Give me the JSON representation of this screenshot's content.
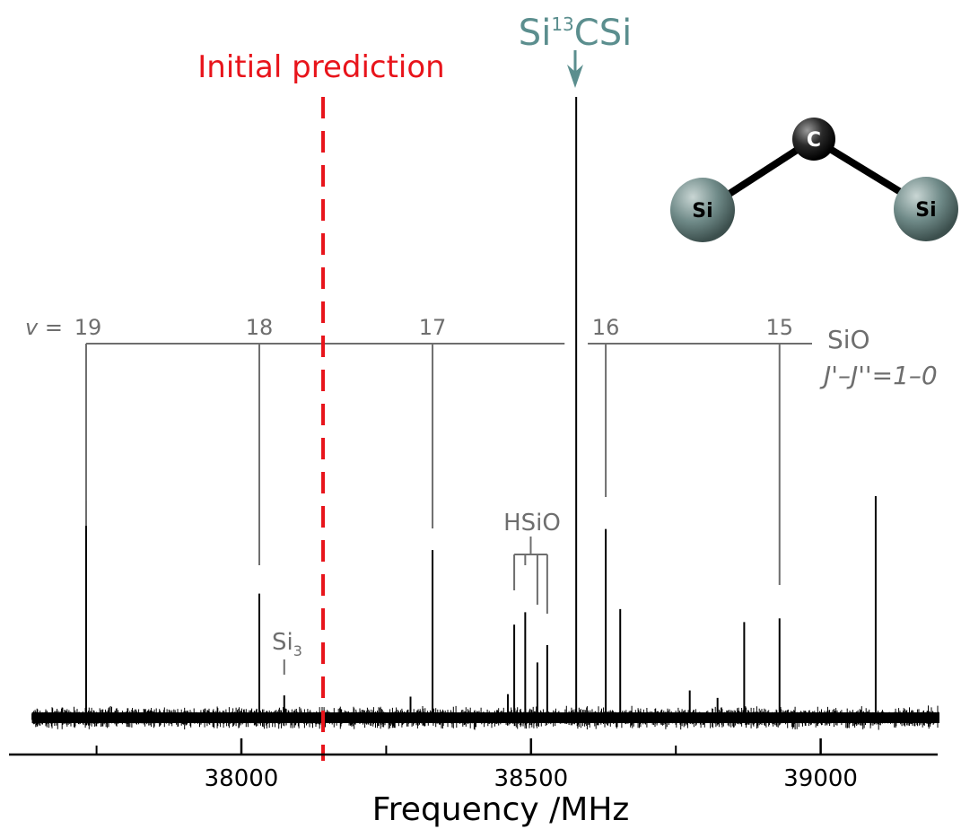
{
  "chart_data": {
    "type": "line",
    "title": "",
    "xlabel": "Frequency /MHz",
    "ylabel": "",
    "xlim": [
      37640,
      39205
    ],
    "major_ticks": [
      38000,
      38500,
      39000
    ],
    "tick_labels": [
      "38000",
      "38500",
      "39000"
    ],
    "minor_ticks": [
      37750,
      38250,
      38750
    ],
    "grid": false,
    "noise_floor": 0.02,
    "peaks": [
      {
        "x": 37732,
        "y": 0.35
      },
      {
        "x": 38031,
        "y": 0.2
      },
      {
        "x": 38074,
        "y": 0.036
      },
      {
        "x": 38292,
        "y": 0.034
      },
      {
        "x": 38330,
        "y": 0.27
      },
      {
        "x": 38460,
        "y": 0.038
      },
      {
        "x": 38471,
        "y": 0.15
      },
      {
        "x": 38490,
        "y": 0.17
      },
      {
        "x": 38511,
        "y": 0.089
      },
      {
        "x": 38528,
        "y": 0.117
      },
      {
        "x": 38578,
        "y": 1.0
      },
      {
        "x": 38629,
        "y": 0.304
      },
      {
        "x": 38654,
        "y": 0.175
      },
      {
        "x": 38774,
        "y": 0.044
      },
      {
        "x": 38822,
        "y": 0.032
      },
      {
        "x": 38868,
        "y": 0.154
      },
      {
        "x": 38929,
        "y": 0.16
      },
      {
        "x": 39095,
        "y": 0.357
      }
    ],
    "prediction": {
      "label": "Initial prediction",
      "x": 38141,
      "color": "#e8141b"
    },
    "target": {
      "label_main": "Si",
      "label_sup": "13",
      "label_end": "CSi",
      "x": 38578,
      "color": "#5b8e8e"
    },
    "sio_series": {
      "label_line1": "SiO",
      "label_line2": "J'–J''=1–0",
      "v_prefix": "v =",
      "lines": [
        {
          "v": "19",
          "x": 37732
        },
        {
          "v": "18",
          "x": 38031
        },
        {
          "v": "17",
          "x": 38330
        },
        {
          "v": "16",
          "x": 38629
        },
        {
          "v": "15",
          "x": 38929
        }
      ],
      "color": "#6e6e6e"
    },
    "hsio": {
      "label": "HSiO",
      "x": [
        38471,
        38490,
        38511,
        38528
      ]
    },
    "si3": {
      "label": "Si",
      "label_sub": "3",
      "x": 38074
    },
    "molecule": {
      "central_atom": "C",
      "side_atoms": [
        "Si",
        "Si"
      ],
      "central_color": "#1e1e1e",
      "side_color": "#5d7a78"
    }
  }
}
